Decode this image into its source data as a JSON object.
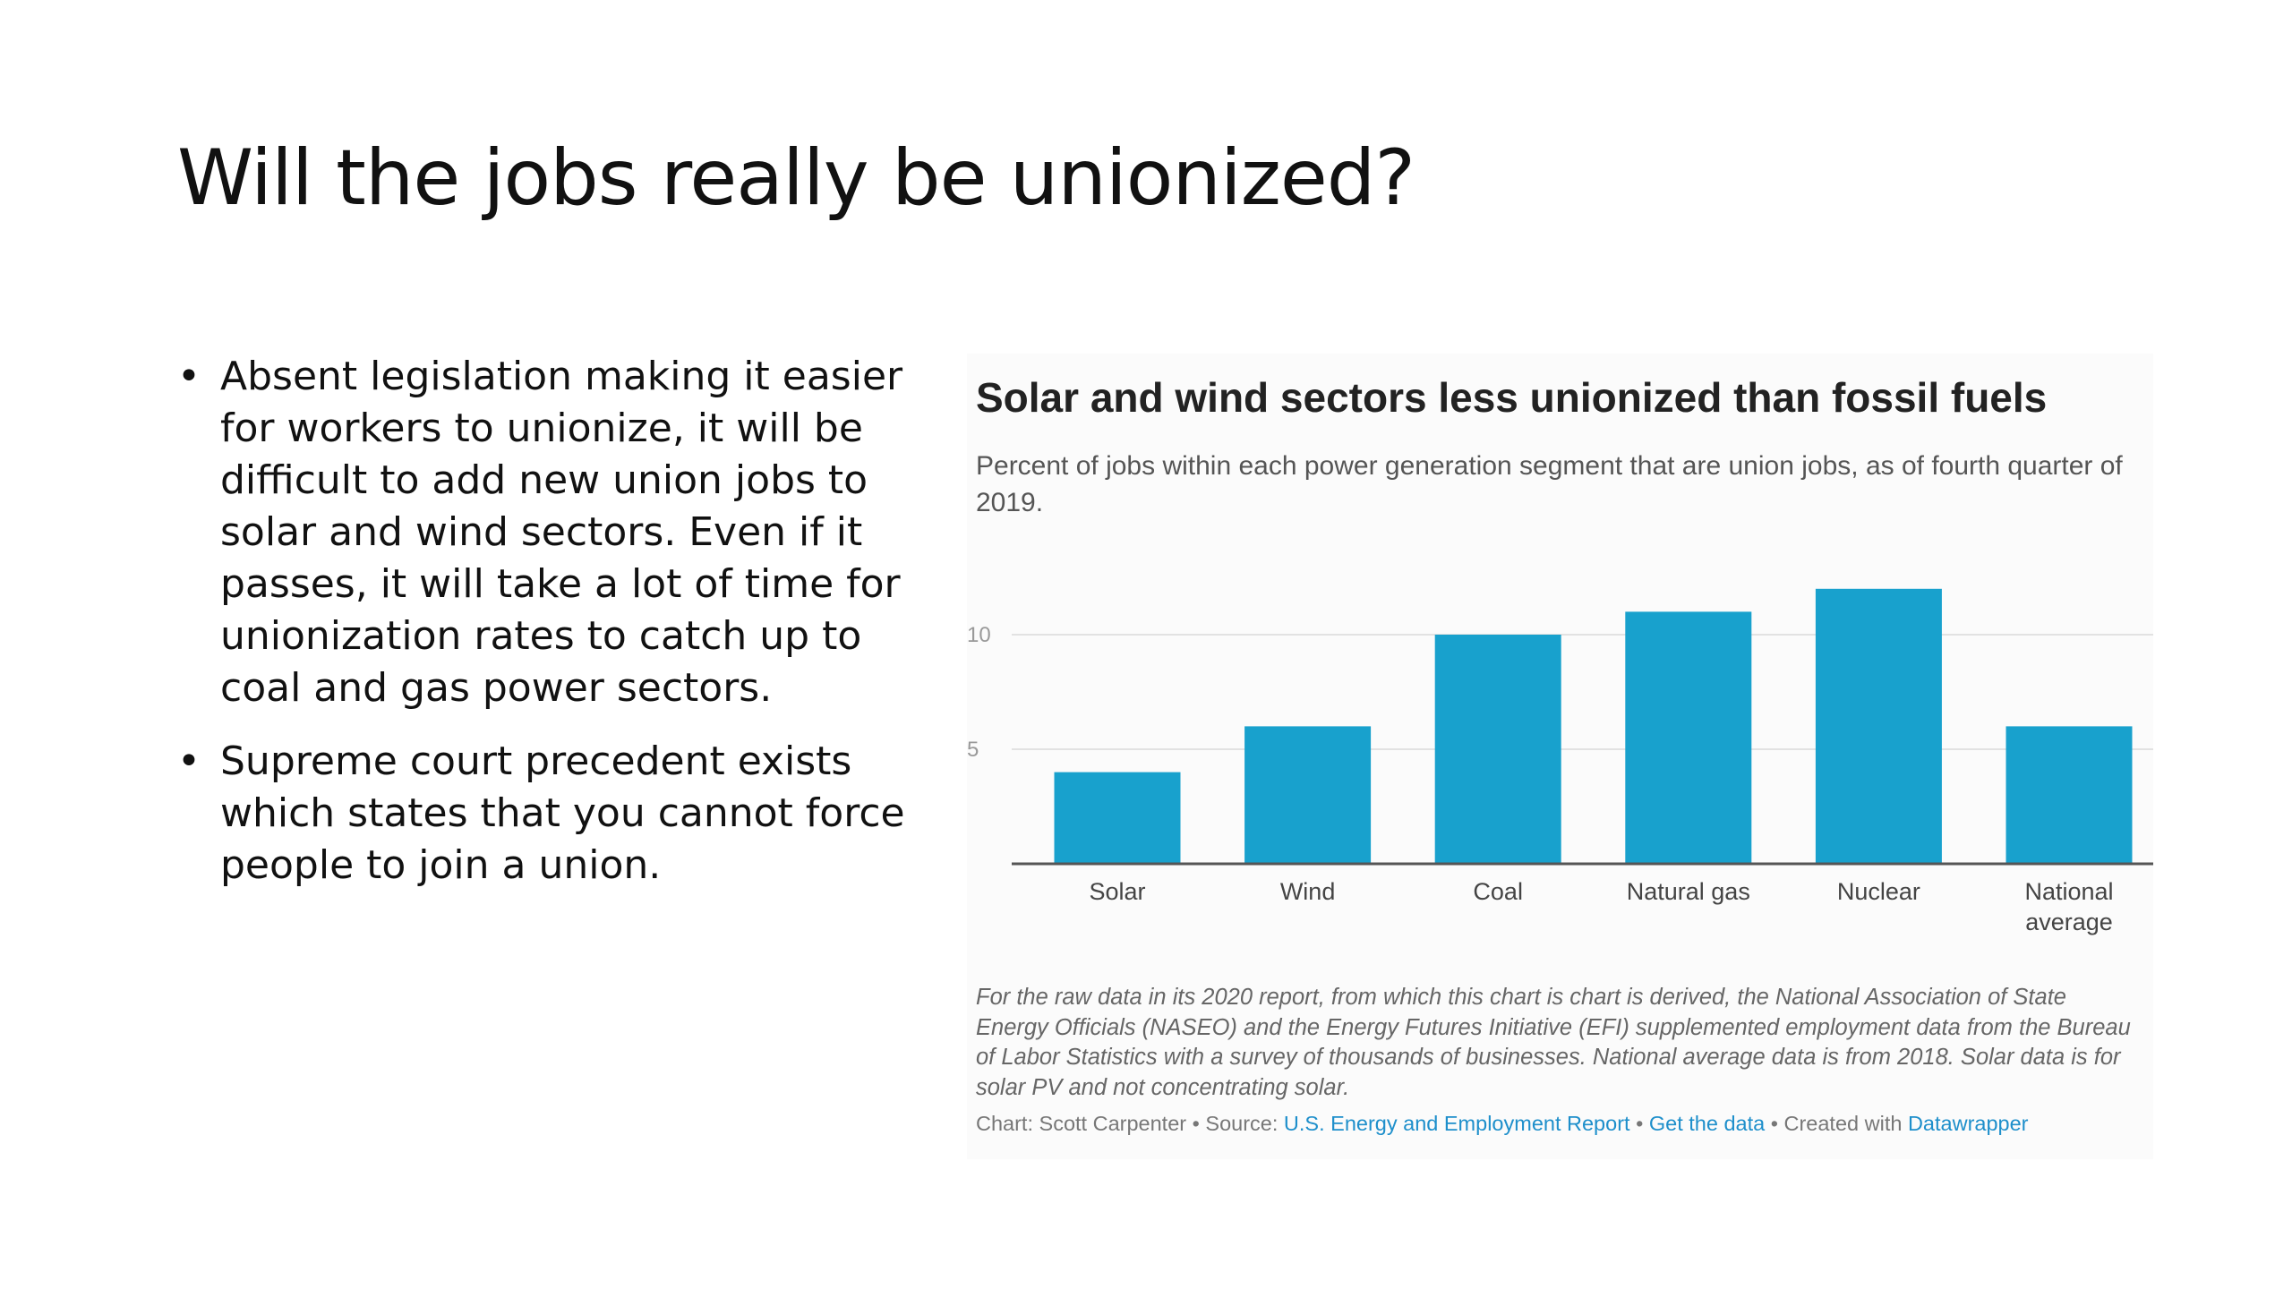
{
  "slide": {
    "title": "Will the jobs really be unionized?",
    "bullets": [
      "Absent legislation making it easier for workers to unionize, it will be difficult to add new union jobs to solar and wind sectors. Even if it passes, it will take a lot of time for unionization rates to catch up to coal and gas power sectors.",
      "Supreme court precedent exists which states that you cannot force people to join a union."
    ],
    "bullet_glyph": "•"
  },
  "chart_data": {
    "type": "bar",
    "title": "Solar and wind sectors less unionized than fossil fuels",
    "subtitle": "Percent of jobs within each power generation segment that are union jobs, as of fourth quarter of 2019.",
    "categories": [
      "Solar",
      "Wind",
      "Coal",
      "Natural gas",
      "Nuclear",
      "National average"
    ],
    "values": [
      4,
      6,
      10,
      11,
      12,
      6
    ],
    "yticks": [
      5,
      10
    ],
    "ylim": [
      0,
      13
    ],
    "grid": true,
    "bar_color": "#18a1cd",
    "notes": "For the raw data in its 2020 report, from which this chart is chart is derived, the National Association of State Energy Officials (NASEO) and the Energy Futures Initiative (EFI) supplemented employment data from the Bureau of Labor Statistics with a survey of thousands of businesses. National average data is from 2018. Solar data is for solar PV and not concentrating solar.",
    "credits": {
      "chart_by": "Chart: Scott Carpenter",
      "source_label": "• Source:",
      "source_link": "U.S. Energy and Employment Report",
      "sep": "•",
      "data_link": "Get the data",
      "created_label": "• Created with",
      "tool_link": "Datawrapper"
    }
  }
}
